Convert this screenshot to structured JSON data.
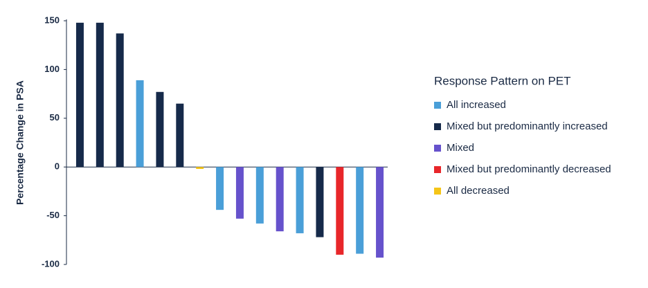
{
  "chart_data": {
    "type": "bar",
    "y_label": "Percentage Change in PSA",
    "legend_title": "Response Pattern on PET",
    "legend_position": "right",
    "categories": [
      null,
      null,
      null,
      null,
      null,
      null,
      null,
      null,
      null,
      null,
      null,
      null,
      null,
      null,
      null,
      null
    ],
    "series": [
      {
        "name": "All increased",
        "color": "#4a9fd8",
        "values": [
          null,
          null,
          null,
          89,
          null,
          null,
          null,
          -44,
          null,
          -58,
          null,
          -68,
          null,
          null,
          -89,
          null
        ]
      },
      {
        "name": "Mixed but predominantly increased",
        "color": "#162a4a",
        "values": [
          148,
          148,
          137,
          null,
          77,
          65,
          null,
          null,
          null,
          null,
          null,
          null,
          -72,
          null,
          null,
          null
        ]
      },
      {
        "name": "Mixed",
        "color": "#6652cc",
        "values": [
          null,
          null,
          null,
          null,
          null,
          null,
          null,
          null,
          -53,
          null,
          -66,
          null,
          null,
          null,
          null,
          -93
        ]
      },
      {
        "name": "Mixed but predominantly decreased",
        "color": "#e8262a",
        "values": [
          null,
          null,
          null,
          null,
          null,
          null,
          null,
          null,
          null,
          null,
          null,
          null,
          null,
          -90,
          null,
          null
        ]
      },
      {
        "name": "All decreased",
        "color": "#f5c518",
        "values": [
          null,
          null,
          null,
          null,
          null,
          null,
          -2,
          null,
          null,
          null,
          null,
          null,
          null,
          null,
          null,
          null
        ]
      }
    ],
    "ylim": [
      -100,
      150
    ],
    "yticks": [
      -100,
      -50,
      0,
      50,
      100,
      150
    ]
  }
}
